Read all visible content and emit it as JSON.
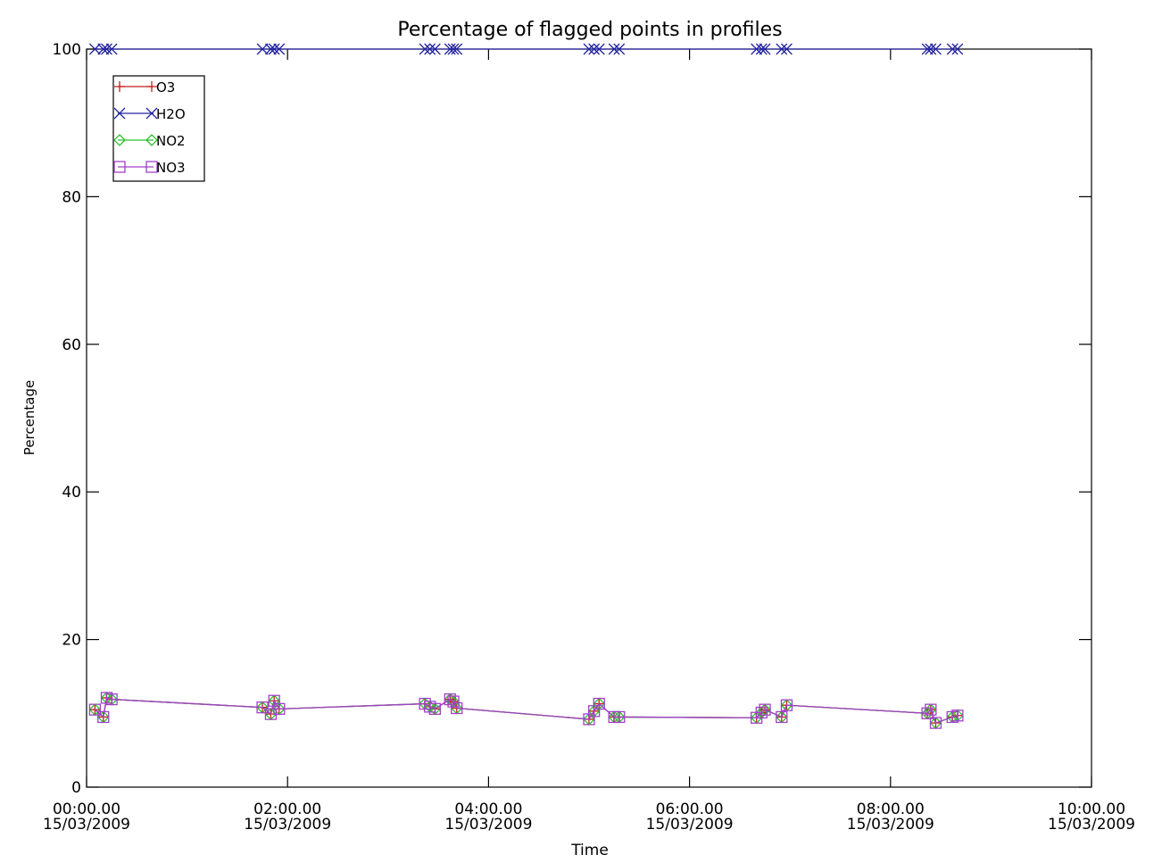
{
  "chart_data": {
    "type": "line",
    "title": "Percentage of flagged points in profiles",
    "xlabel": "Time",
    "ylabel": "Percentage",
    "ylim": [
      0,
      100
    ],
    "xlim": [
      "2009-03-15 00:00",
      "2009-03-15 10:00"
    ],
    "grid": false,
    "legend_position": "top-left",
    "x_ticks": [
      {
        "time": "00:00.00",
        "date": "15/03/2009"
      },
      {
        "time": "02:00.00",
        "date": "15/03/2009"
      },
      {
        "time": "04:00.00",
        "date": "15/03/2009"
      },
      {
        "time": "06:00.00",
        "date": "15/03/2009"
      },
      {
        "time": "08:00.00",
        "date": "15/03/2009"
      },
      {
        "time": "10:00.00",
        "date": "15/03/2009"
      }
    ],
    "y_ticks": [
      "0",
      "20",
      "40",
      "60",
      "80",
      "100"
    ],
    "series": [
      {
        "name": "O3",
        "color": "#c81e1e",
        "marker": "plus",
        "x": [
          "00:05",
          "00:10",
          "00:12",
          "00:15",
          "01:45",
          "01:50",
          "01:52",
          "01:55",
          "03:22",
          "03:25",
          "03:28",
          "03:37",
          "03:39",
          "03:41",
          "05:00",
          "05:03",
          "05:06",
          "05:15",
          "05:18",
          "06:40",
          "06:43",
          "06:45",
          "06:55",
          "06:58",
          "08:22",
          "08:24",
          "08:27",
          "08:37",
          "08:40"
        ],
        "y": [
          10.5,
          9.5,
          12.1,
          11.9,
          10.8,
          9.9,
          11.7,
          10.6,
          11.3,
          10.9,
          10.6,
          11.9,
          11.6,
          10.7,
          9.2,
          10.3,
          11.3,
          9.5,
          9.5,
          9.4,
          10.1,
          10.5,
          9.5,
          11.1,
          10.0,
          10.5,
          8.7,
          9.5,
          9.7
        ]
      },
      {
        "name": "H2O",
        "color": "#2424a0",
        "marker": "x",
        "x": [
          "00:05",
          "00:10",
          "00:12",
          "00:15",
          "01:45",
          "01:50",
          "01:52",
          "01:55",
          "03:22",
          "03:25",
          "03:28",
          "03:37",
          "03:39",
          "03:41",
          "05:00",
          "05:03",
          "05:06",
          "05:15",
          "05:18",
          "06:40",
          "06:43",
          "06:45",
          "06:55",
          "06:58",
          "08:22",
          "08:24",
          "08:27",
          "08:37",
          "08:40"
        ],
        "y": [
          100,
          100,
          100,
          100,
          100,
          100,
          100,
          100,
          100,
          100,
          100,
          100,
          100,
          100,
          100,
          100,
          100,
          100,
          100,
          100,
          100,
          100,
          100,
          100,
          100,
          100,
          100,
          100,
          100
        ]
      },
      {
        "name": "NO2",
        "color": "#2ec02e",
        "marker": "diamond",
        "x": [
          "00:05",
          "00:10",
          "00:12",
          "00:15",
          "01:45",
          "01:50",
          "01:52",
          "01:55",
          "03:22",
          "03:25",
          "03:28",
          "03:37",
          "03:39",
          "03:41",
          "05:00",
          "05:03",
          "05:06",
          "05:15",
          "05:18",
          "06:40",
          "06:43",
          "06:45",
          "06:55",
          "06:58",
          "08:22",
          "08:24",
          "08:27",
          "08:37",
          "08:40"
        ],
        "y": [
          10.5,
          9.5,
          12.1,
          11.9,
          10.8,
          9.9,
          11.7,
          10.6,
          11.3,
          10.9,
          10.6,
          11.9,
          11.6,
          10.7,
          9.2,
          10.3,
          11.3,
          9.5,
          9.5,
          9.4,
          10.1,
          10.5,
          9.5,
          11.1,
          10.0,
          10.5,
          8.7,
          9.5,
          9.7
        ]
      },
      {
        "name": "NO3",
        "color": "#a040c8",
        "marker": "square",
        "x": [
          "00:05",
          "00:10",
          "00:12",
          "00:15",
          "01:45",
          "01:50",
          "01:52",
          "01:55",
          "03:22",
          "03:25",
          "03:28",
          "03:37",
          "03:39",
          "03:41",
          "05:00",
          "05:03",
          "05:06",
          "05:15",
          "05:18",
          "06:40",
          "06:43",
          "06:45",
          "06:55",
          "06:58",
          "08:22",
          "08:24",
          "08:27",
          "08:37",
          "08:40"
        ],
        "y": [
          10.5,
          9.5,
          12.1,
          11.9,
          10.8,
          9.9,
          11.7,
          10.6,
          11.3,
          10.9,
          10.6,
          11.9,
          11.6,
          10.7,
          9.2,
          10.3,
          11.3,
          9.5,
          9.5,
          9.4,
          10.1,
          10.5,
          9.5,
          11.1,
          10.0,
          10.5,
          8.7,
          9.5,
          9.7
        ]
      }
    ]
  }
}
